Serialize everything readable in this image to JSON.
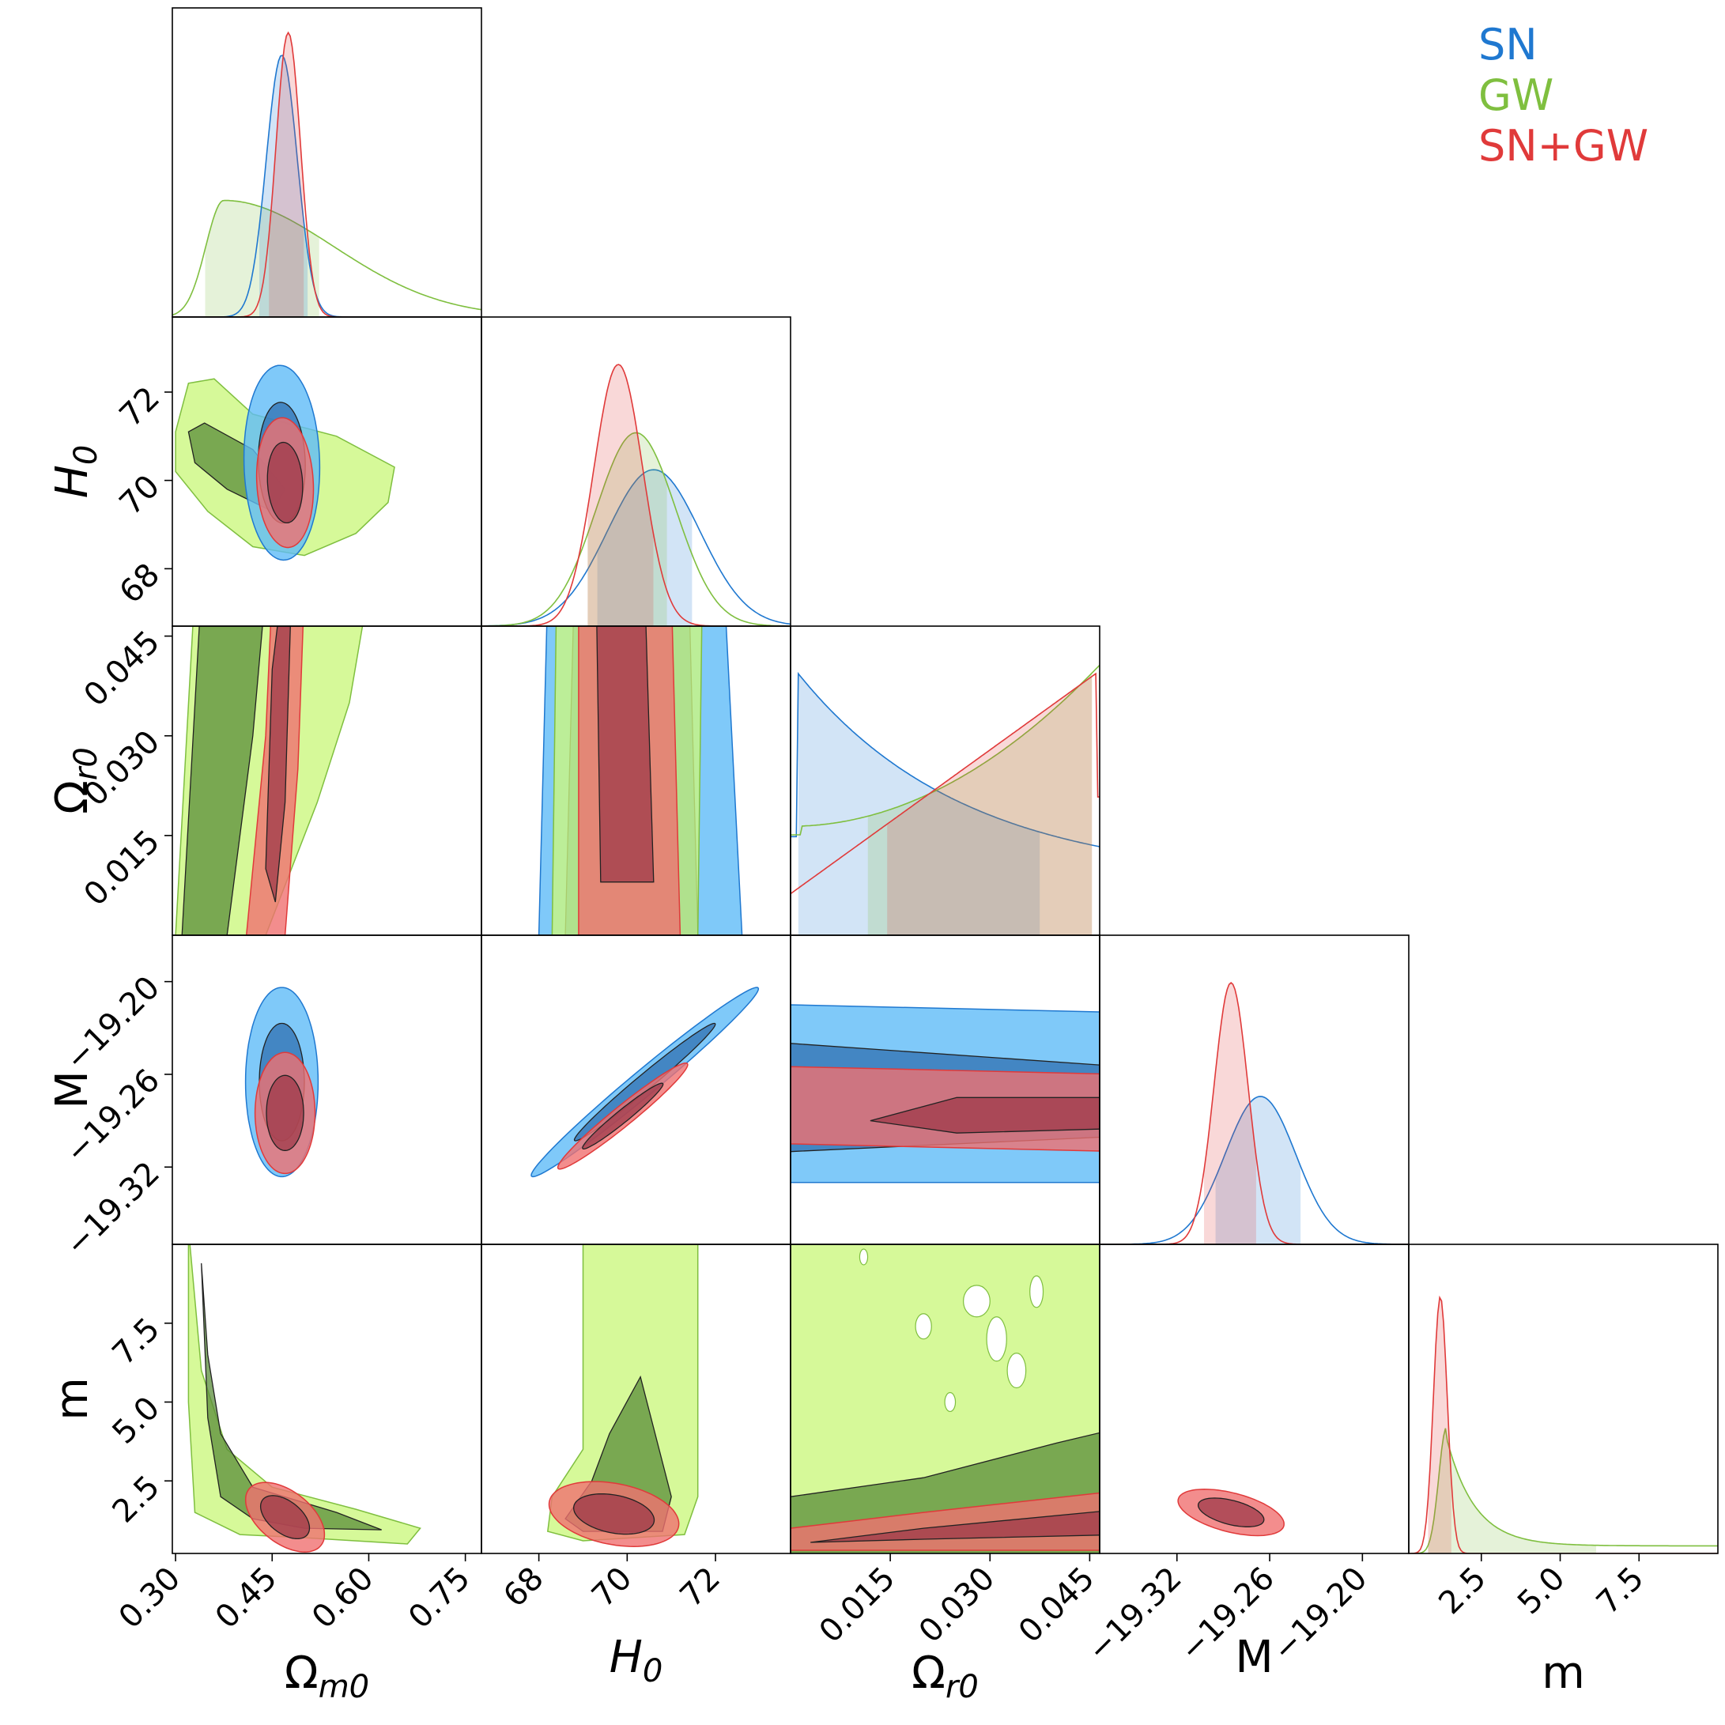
{
  "chart_data": {
    "type": "corner",
    "title": "",
    "parameters": [
      {
        "key": "om",
        "label": "Ω",
        "sub": "m0",
        "italic": false,
        "range": [
          0.295,
          0.775
        ],
        "ticks": [
          "0.30",
          "0.45",
          "0.60",
          "0.75"
        ],
        "tick_values": [
          0.3,
          0.45,
          0.6,
          0.75
        ]
      },
      {
        "key": "H0",
        "label": "H",
        "sub": "0",
        "italic": true,
        "range": [
          66.7,
          73.7
        ],
        "ticks": [
          "68",
          "70",
          "72"
        ],
        "tick_values": [
          68,
          70,
          72
        ]
      },
      {
        "key": "or",
        "label": "Ω",
        "sub": "r0",
        "italic": false,
        "range": [
          0.0,
          0.0465
        ],
        "ticks": [
          "0.015",
          "0.030",
          "0.045"
        ],
        "tick_values": [
          0.015,
          0.03,
          0.045
        ]
      },
      {
        "key": "M",
        "label": "M",
        "sub": "",
        "italic": false,
        "range": [
          -19.37,
          -19.17
        ],
        "ticks": [
          "−19.32",
          "−19.26",
          "−19.20"
        ],
        "tick_values": [
          -19.32,
          -19.26,
          -19.2
        ]
      },
      {
        "key": "m",
        "label": "m",
        "sub": "",
        "italic": false,
        "range": [
          0.2,
          10.0
        ],
        "ticks": [
          "2.5",
          "5.0",
          "7.5"
        ],
        "tick_values": [
          2.5,
          5.0,
          7.5
        ]
      }
    ],
    "series": [
      {
        "name": "SN",
        "color": "#1f78d0",
        "fill2": "#5fbcf7",
        "fill1": "#2f6fb0",
        "means": {
          "om": 0.465,
          "H0": 70.4,
          "or": null,
          "M": -19.265,
          "m": null
        },
        "sigmas": {
          "om": 0.024,
          "H0": 0.93,
          "or": null,
          "M": 0.025,
          "m": null
        }
      },
      {
        "name": "GW",
        "color": "#7fbf3f",
        "fill2": "#ccf780",
        "fill1": "#5a8c3a",
        "means": {
          "om": 0.38,
          "H0": 70.2,
          "or": null,
          "M": null,
          "m": 1.6
        },
        "sigmas": {
          "om": 0.06,
          "H0": 0.85,
          "or": null,
          "M": null,
          "m": 1.5
        }
      },
      {
        "name": "SN+GW",
        "color": "#e03a3a",
        "fill2": "#f07070",
        "fill1": "#9e3a4a",
        "means": {
          "om": 0.47,
          "H0": 69.9,
          "or": null,
          "M": -19.287,
          "m": 1.4
        },
        "sigmas": {
          "om": 0.016,
          "H0": 0.6,
          "or": null,
          "M": 0.015,
          "m": 0.35
        }
      }
    ],
    "legend": {
      "placement": "top-right",
      "entries": [
        "SN",
        "GW",
        "SN+GW"
      ]
    }
  }
}
